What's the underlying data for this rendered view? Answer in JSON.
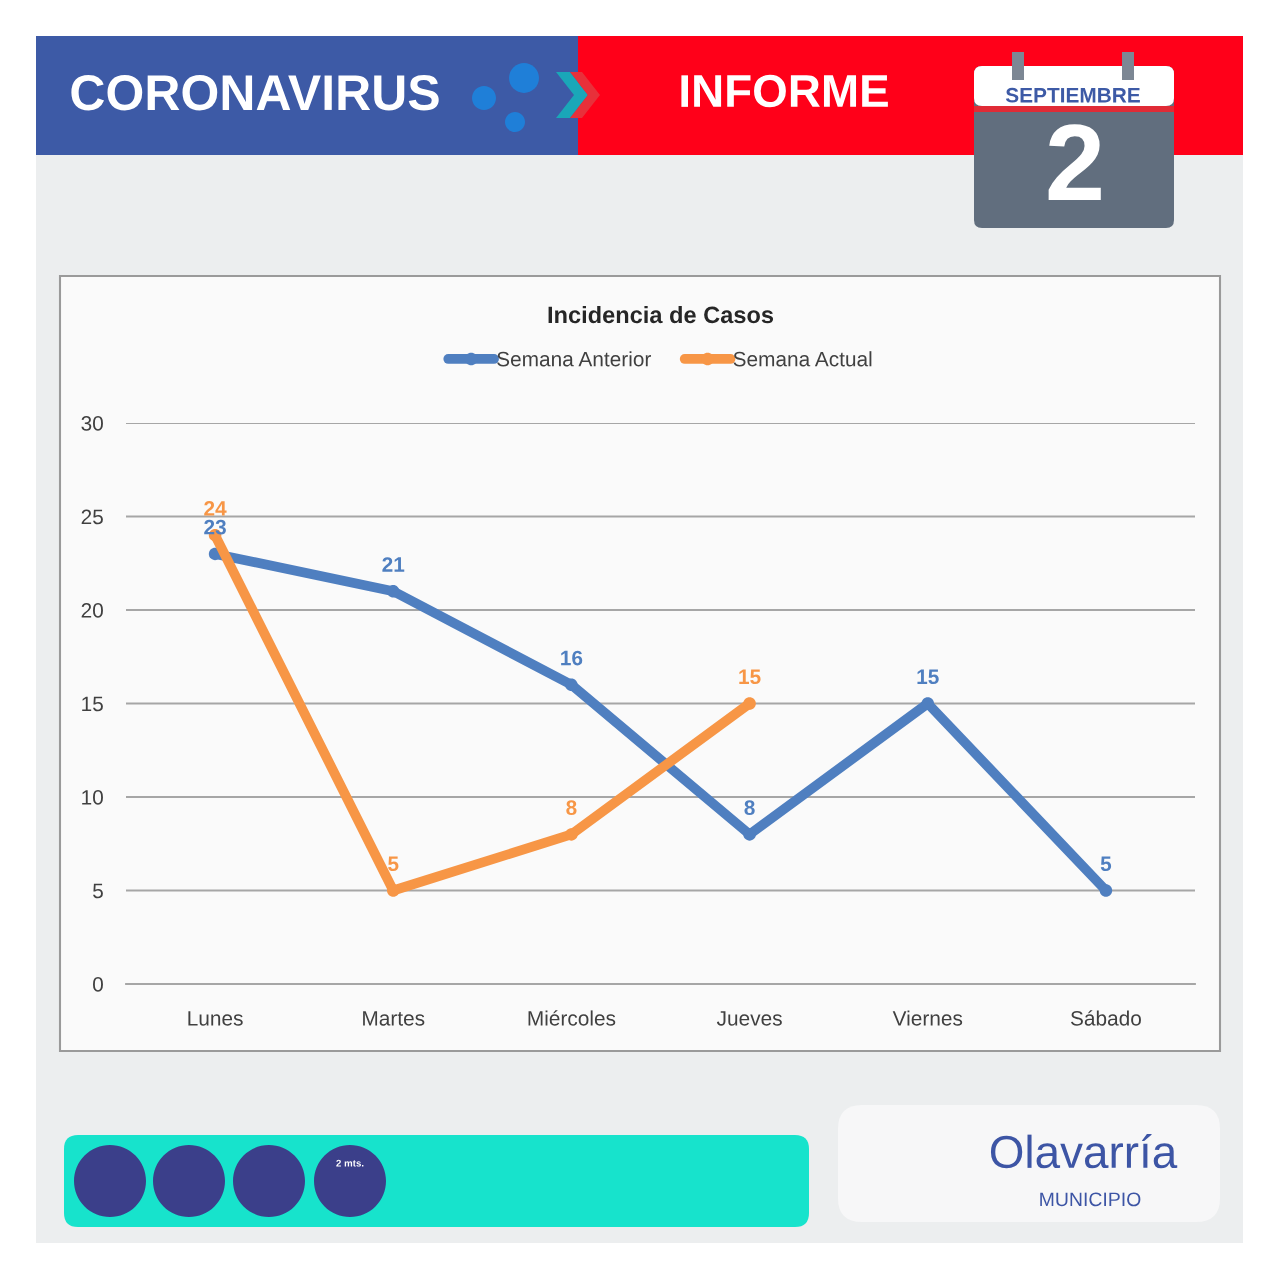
{
  "chart_data": {
    "type": "line",
    "title": "Incidencia de Casos",
    "categories": [
      "Lunes",
      "Martes",
      "Miércoles",
      "Jueves",
      "Viernes",
      "Sábado"
    ],
    "series": [
      {
        "name": "Semana Anterior",
        "color": "#4f7fc0",
        "values": [
          23,
          21,
          16,
          8,
          15,
          5
        ]
      },
      {
        "name": "Semana Actual",
        "color": "#f79646",
        "values": [
          24,
          5,
          8,
          15,
          null,
          null
        ]
      }
    ],
    "ylim": [
      0,
      30
    ],
    "yticks": [
      0,
      5,
      10,
      15,
      20,
      25,
      30
    ],
    "grid": "y",
    "legend": "top",
    "marker": "circle",
    "line_style": "solid",
    "data_labels": true,
    "annotations": [
      "CORONAVIRUS",
      "INFORME",
      "SEPTIEMBRE",
      "2",
      "2 mts.",
      "Olavarría",
      "MUNICIPIO"
    ]
  }
}
